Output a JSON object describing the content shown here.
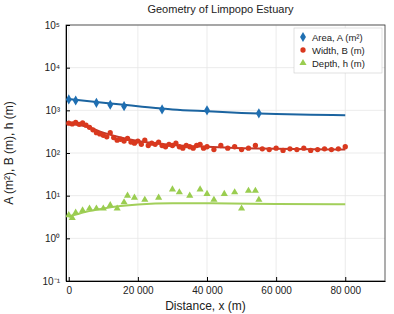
{
  "chart_data": {
    "type": "scatter",
    "title": "Geometry of Limpopo Estuary",
    "x_label": "Distance, x (m)",
    "y_label": "A (m²), B (m), h (m)",
    "log": "y",
    "grid": true,
    "legend": "upper right",
    "xlim": [
      -800,
      91500
    ],
    "xticks": [
      0,
      {
        "value": 20000,
        "label": "20 000"
      },
      {
        "value": 40000,
        "label": "40 000"
      },
      {
        "value": 60000,
        "label": "60 000"
      },
      {
        "value": 80000,
        "label": "80 000"
      }
    ],
    "ylim": [
      0.1,
      100000
    ],
    "yticks": [
      {
        "value": 0.1,
        "label": "10⁻¹"
      },
      {
        "value": 1,
        "label": "10⁰"
      },
      {
        "value": 10,
        "label": "10¹"
      },
      {
        "value": 100,
        "label": "10²"
      },
      {
        "value": 1000,
        "label": "10³"
      },
      {
        "value": 10000,
        "label": "10⁴"
      },
      {
        "value": 100000,
        "label": "10⁵"
      }
    ],
    "series": [
      {
        "name": "Area, A (m²)",
        "type": "scatter",
        "marker": "diamond",
        "color": "#1f6fb2",
        "x": [
          0,
          2000,
          8000,
          12000,
          16000,
          27000,
          40000,
          55000
        ],
        "values": [
          1800,
          1700,
          1500,
          1350,
          1250,
          1050,
          1000,
          850
        ]
      },
      {
        "name": "Width, B (m)",
        "type": "scatter",
        "marker": "circle",
        "color": "#d9381e",
        "x": [
          0,
          1000,
          2000,
          3000,
          4000,
          5000,
          6000,
          7000,
          8000,
          9000,
          10000,
          11000,
          12000,
          13000,
          14000,
          15000,
          16000,
          17000,
          18000,
          19000,
          20000,
          21000,
          22000,
          23000,
          24000,
          25000,
          26000,
          27000,
          28000,
          29000,
          30000,
          31000,
          32000,
          33000,
          34000,
          35000,
          36000,
          37000,
          38000,
          39000,
          40000,
          42000,
          44000,
          46000,
          48000,
          50000,
          52000,
          54000,
          56000,
          58000,
          60000,
          62000,
          64000,
          66000,
          68000,
          70000,
          72000,
          74000,
          76000,
          78000,
          80000
        ],
        "values": [
          500,
          480,
          520,
          470,
          510,
          450,
          400,
          350,
          300,
          280,
          260,
          240,
          300,
          230,
          200,
          210,
          190,
          220,
          180,
          170,
          190,
          160,
          200,
          150,
          170,
          160,
          180,
          150,
          140,
          160,
          150,
          170,
          140,
          130,
          150,
          140,
          130,
          150,
          160,
          130,
          140,
          120,
          150,
          130,
          140,
          120,
          130,
          150,
          125,
          120,
          130,
          115,
          125,
          120,
          130,
          115,
          120,
          125,
          120,
          125,
          140
        ]
      },
      {
        "name": "Depth, h (m)",
        "type": "scatter",
        "marker": "triangle",
        "color": "#9acd50",
        "x": [
          0,
          1000,
          2000,
          4000,
          6000,
          8000,
          10000,
          12000,
          14000,
          16000,
          17000,
          19000,
          22000,
          26000,
          30000,
          32000,
          35000,
          38000,
          40000,
          42000,
          45000,
          48000,
          50000,
          52000,
          54000,
          55000
        ],
        "values": [
          3.5,
          3,
          4,
          4.5,
          5,
          5,
          5,
          6,
          5,
          7,
          10,
          9,
          8,
          9,
          14,
          12,
          10,
          14,
          11,
          8,
          11,
          12,
          5,
          13,
          13,
          8
        ]
      },
      {
        "type": "line",
        "color": "#1b64a0",
        "x": [
          0,
          10000,
          20000,
          30000,
          40000,
          50000,
          60000,
          70000,
          80000
        ],
        "values": [
          1850,
          1500,
          1250,
          1050,
          950,
          870,
          820,
          790,
          770
        ]
      },
      {
        "type": "line",
        "color": "#c0392b",
        "x": [
          0,
          5000,
          10000,
          15000,
          20000,
          30000,
          40000,
          50000,
          60000,
          70000,
          80000
        ],
        "values": [
          480,
          420,
          300,
          230,
          190,
          155,
          140,
          130,
          125,
          122,
          120
        ]
      },
      {
        "type": "line",
        "color": "#a2cf5a",
        "x": [
          0,
          5000,
          10000,
          15000,
          20000,
          30000,
          40000,
          60000,
          80000
        ],
        "values": [
          3.2,
          4.2,
          5.0,
          5.7,
          6.2,
          6.6,
          6.6,
          6.4,
          6.3
        ]
      }
    ]
  }
}
